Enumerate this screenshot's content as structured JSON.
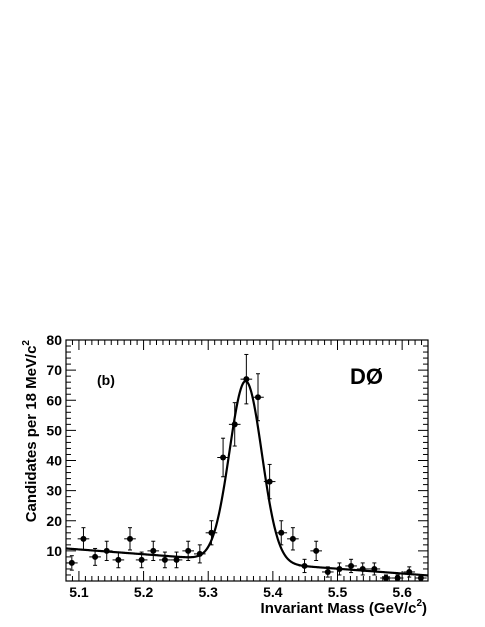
{
  "chart_data": {
    "type": "scatter",
    "title": "",
    "panel_label": "(b)",
    "experiment_label": "DØ",
    "xlabel": "Invariant Mass  (GeV/c",
    "xlabel_sup": "2",
    "xlabel_close": ")",
    "ylabel": "Candidates per 18 MeV/c",
    "ylabel_sup": "2",
    "xlim": [
      5.08,
      5.64
    ],
    "ylim": [
      0,
      80
    ],
    "x_ticks": [
      5.1,
      5.2,
      5.3,
      5.4,
      5.5,
      5.6
    ],
    "x_tick_labels": [
      "5.1",
      "5.2",
      "5.3",
      "5.4",
      "5.5",
      "5.6"
    ],
    "y_ticks": [
      10,
      20,
      30,
      40,
      50,
      60,
      70,
      80
    ],
    "y_tick_labels": [
      "10",
      "20",
      "30",
      "40",
      "50",
      "60",
      "70",
      "80"
    ],
    "grid": false,
    "bin_half_width": 0.009,
    "points": [
      {
        "x": 5.089,
        "y": 6,
        "err": 2.4
      },
      {
        "x": 5.107,
        "y": 14,
        "err": 3.7
      },
      {
        "x": 5.125,
        "y": 8,
        "err": 2.8
      },
      {
        "x": 5.143,
        "y": 10,
        "err": 3.2
      },
      {
        "x": 5.161,
        "y": 7,
        "err": 2.6
      },
      {
        "x": 5.179,
        "y": 14,
        "err": 3.7
      },
      {
        "x": 5.197,
        "y": 7,
        "err": 2.6
      },
      {
        "x": 5.215,
        "y": 10,
        "err": 3.2
      },
      {
        "x": 5.233,
        "y": 7,
        "err": 2.6
      },
      {
        "x": 5.251,
        "y": 7,
        "err": 2.6
      },
      {
        "x": 5.269,
        "y": 10,
        "err": 3.2
      },
      {
        "x": 5.287,
        "y": 9,
        "err": 3.0
      },
      {
        "x": 5.305,
        "y": 16,
        "err": 4.0
      },
      {
        "x": 5.323,
        "y": 41,
        "err": 6.4
      },
      {
        "x": 5.341,
        "y": 52,
        "err": 7.2
      },
      {
        "x": 5.359,
        "y": 67,
        "err": 8.2
      },
      {
        "x": 5.377,
        "y": 61,
        "err": 7.8
      },
      {
        "x": 5.395,
        "y": 33,
        "err": 5.7
      },
      {
        "x": 5.413,
        "y": 16,
        "err": 4.0
      },
      {
        "x": 5.431,
        "y": 14,
        "err": 3.7
      },
      {
        "x": 5.449,
        "y": 5,
        "err": 2.2
      },
      {
        "x": 5.467,
        "y": 10,
        "err": 3.2
      },
      {
        "x": 5.485,
        "y": 3,
        "err": 1.7
      },
      {
        "x": 5.503,
        "y": 4,
        "err": 2.0
      },
      {
        "x": 5.521,
        "y": 5,
        "err": 2.2
      },
      {
        "x": 5.539,
        "y": 4,
        "err": 2.0
      },
      {
        "x": 5.557,
        "y": 4,
        "err": 2.0
      },
      {
        "x": 5.575,
        "y": 1,
        "err": 1.0
      },
      {
        "x": 5.593,
        "y": 1,
        "err": 1.0
      },
      {
        "x": 5.611,
        "y": 3,
        "err": 1.7
      },
      {
        "x": 5.629,
        "y": 1,
        "err": 1.0
      }
    ],
    "fit": {
      "model": "gaussian_plus_linear_background",
      "mean": 5.358,
      "sigma": 0.025,
      "amplitude": 60,
      "background_at_xmin": 10.8,
      "background_slope_per_gev": -16
    }
  }
}
